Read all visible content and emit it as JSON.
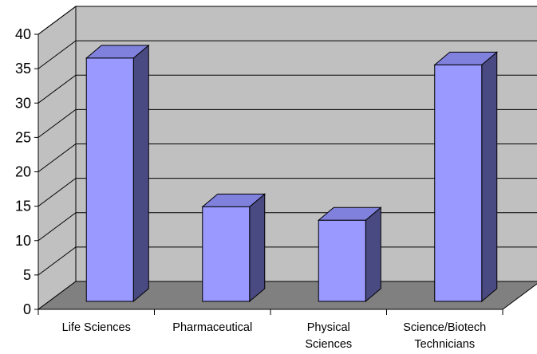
{
  "chart_data": {
    "type": "bar",
    "style": "3d-column",
    "categories": [
      [
        "Life Sciences"
      ],
      [
        "Pharmaceutical"
      ],
      [
        "Physical",
        "Sciences"
      ],
      [
        "Science/Biotech",
        "Technicians"
      ]
    ],
    "values": [
      36,
      14,
      12,
      35
    ],
    "ylim": [
      0,
      40
    ],
    "yticks": [
      0,
      5,
      10,
      15,
      20,
      25,
      30,
      35,
      40
    ],
    "ytick_labels": [
      "0",
      "5",
      "10",
      "15",
      "20",
      "25",
      "30",
      "35",
      "40"
    ],
    "grid": true,
    "legend": "none",
    "colors": {
      "bar_front": "#9999ff",
      "bar_side": "#4a4a82",
      "bar_top": "#8080dd",
      "wall": "#c0c0c0",
      "floor": "#808080",
      "gridline": "#000000"
    }
  }
}
